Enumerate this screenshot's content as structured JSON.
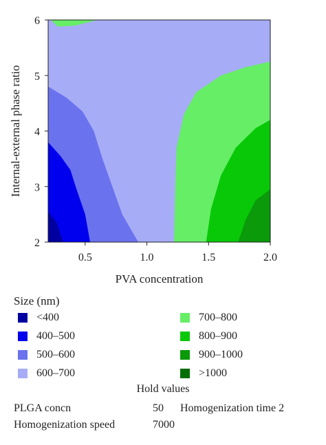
{
  "chart_data": {
    "type": "heatmap",
    "subtype": "contour",
    "xlabel": "PVA concentration",
    "ylabel": "Internal-external phase ratio",
    "xlim": [
      0.2,
      2.0
    ],
    "ylim": [
      2,
      6
    ],
    "xticks": [
      "0.5",
      "1.0",
      "1.5",
      "2.0"
    ],
    "xtick_values": [
      0.5,
      1.0,
      1.5,
      2.0
    ],
    "yticks": [
      "2",
      "3",
      "4",
      "5",
      "6"
    ],
    "ytick_values": [
      2,
      3,
      4,
      5,
      6
    ],
    "z_label": "Size (nm)",
    "levels": [
      {
        "label": "<400",
        "color": "#0000a0"
      },
      {
        "label": "400–500",
        "color": "#0000ee"
      },
      {
        "label": "500–600",
        "color": "#6a72ee"
      },
      {
        "label": "600–700",
        "color": "#a6acf6"
      },
      {
        "label": "700–800",
        "color": "#66ee66"
      },
      {
        "label": "800–900",
        "color": "#08c808"
      },
      {
        "label": "900–1000",
        "color": "#0a9a0a"
      },
      {
        "label": ">1000",
        "color": "#066e06"
      }
    ],
    "contour_boundaries": [
      {
        "between": "<400 | 400–500",
        "points": [
          [
            0.2,
            2.55
          ],
          [
            0.27,
            2.35
          ],
          [
            0.32,
            2.0
          ]
        ]
      },
      {
        "between": "400–500 | 500–600",
        "points": [
          [
            0.2,
            3.8
          ],
          [
            0.3,
            3.55
          ],
          [
            0.38,
            3.3
          ],
          [
            0.43,
            2.95
          ],
          [
            0.5,
            2.5
          ],
          [
            0.54,
            2.0
          ]
        ]
      },
      {
        "between": "500–600 | 600–700",
        "points": [
          [
            0.2,
            4.8
          ],
          [
            0.35,
            4.6
          ],
          [
            0.48,
            4.35
          ],
          [
            0.57,
            4.0
          ],
          [
            0.64,
            3.5
          ],
          [
            0.72,
            3.0
          ],
          [
            0.8,
            2.5
          ],
          [
            0.93,
            2.0
          ]
        ]
      },
      {
        "between": "600–700 | 700–800",
        "points": [
          [
            1.22,
            2.0
          ],
          [
            1.23,
            3.0
          ],
          [
            1.24,
            3.7
          ],
          [
            1.3,
            4.3
          ],
          [
            1.4,
            4.7
          ],
          [
            1.6,
            5.0
          ],
          [
            1.8,
            5.15
          ],
          [
            2.0,
            5.25
          ]
        ]
      },
      {
        "between": "700–800 | 800–900",
        "points": [
          [
            1.48,
            2.0
          ],
          [
            1.52,
            2.6
          ],
          [
            1.6,
            3.2
          ],
          [
            1.72,
            3.7
          ],
          [
            1.88,
            4.05
          ],
          [
            2.0,
            4.2
          ]
        ]
      },
      {
        "between": "800–900 | 900–1000",
        "points": [
          [
            1.74,
            2.0
          ],
          [
            1.8,
            2.4
          ],
          [
            1.88,
            2.75
          ],
          [
            2.0,
            2.95
          ]
        ]
      },
      {
        "between": "600–700 | 700–800 (top)",
        "points": [
          [
            0.22,
            6.0
          ],
          [
            0.28,
            5.88
          ],
          [
            0.42,
            5.9
          ],
          [
            0.6,
            6.0
          ]
        ]
      }
    ]
  },
  "legend": {
    "title": "Size (nm)",
    "left": [
      "<400",
      "400–500",
      "500–600",
      "600–700"
    ],
    "right": [
      "700–800",
      "800–900",
      "900–1000",
      ">1000"
    ]
  },
  "hold": {
    "title": "Hold values",
    "plga_label": "PLGA concn",
    "plga_value": "50",
    "time_label": "Homogenization time 2",
    "speed_label": "Homogenization speed",
    "speed_value": "7000"
  }
}
